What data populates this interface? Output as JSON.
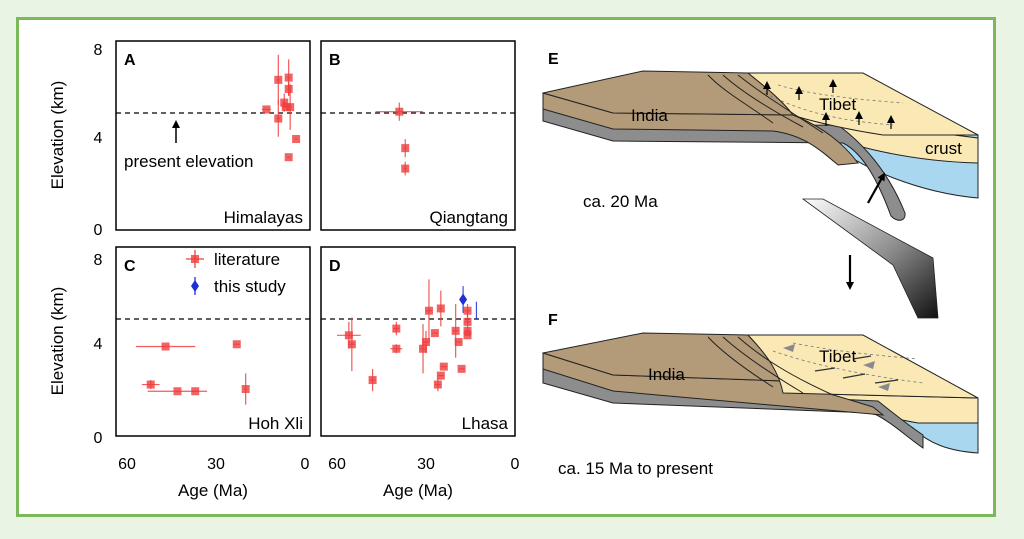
{
  "legend": {
    "literature": "literature",
    "this_study": "this study"
  },
  "annotation": {
    "present_elevation": "present elevation"
  },
  "axes": {
    "ylabel": "Elevation (km)",
    "xlabel": "Age (Ma)",
    "yticks": [
      "8",
      "4",
      "0"
    ],
    "xticks": [
      "60",
      "30",
      "0"
    ]
  },
  "chart_data": [
    {
      "type": "scatter",
      "panel": "A",
      "region": "Himalayas",
      "xlabel": "Age (Ma)",
      "ylabel": "Elevation (km)",
      "xlim": [
        60,
        0
      ],
      "ylim": [
        0,
        8
      ],
      "reference_line": 5.0,
      "series": [
        {
          "name": "literature",
          "points": [
            {
              "x": 13,
              "y": 5.3,
              "xerr": 1.5,
              "yerr": 0
            },
            {
              "x": 9,
              "y": 6.6,
              "xerr": 0.5,
              "yerr": 1.1
            },
            {
              "x": 9,
              "y": 4.9,
              "xerr": 0.5,
              "yerr": 0.8
            },
            {
              "x": 7,
              "y": 5.6,
              "xerr": 0.5,
              "yerr": 0.4
            },
            {
              "x": 6.5,
              "y": 5.4,
              "xerr": 1,
              "yerr": 0
            },
            {
              "x": 5.5,
              "y": 6.7,
              "xerr": 0.5,
              "yerr": 0.8
            },
            {
              "x": 5.5,
              "y": 6.2,
              "xerr": 0.5,
              "yerr": 0.3
            },
            {
              "x": 5,
              "y": 5.4,
              "xerr": 0.5,
              "yerr": 1.0
            },
            {
              "x": 5.5,
              "y": 3.2,
              "xerr": 0.5,
              "yerr": 0
            },
            {
              "x": 3,
              "y": 4.0,
              "xerr": 0.5,
              "yerr": 0
            }
          ]
        }
      ]
    },
    {
      "type": "scatter",
      "panel": "B",
      "region": "Qiangtang",
      "xlabel": "Age (Ma)",
      "ylabel": "Elevation (km)",
      "xlim": [
        60,
        0
      ],
      "ylim": [
        0,
        8
      ],
      "reference_line": 5.0,
      "series": [
        {
          "name": "literature",
          "points": [
            {
              "x": 39,
              "y": 5.2,
              "xerr": 8,
              "yerr": 0.4
            },
            {
              "x": 37,
              "y": 3.6,
              "xerr": 0.5,
              "yerr": 0.4
            },
            {
              "x": 37,
              "y": 2.7,
              "xerr": 0.5,
              "yerr": 0.3
            }
          ]
        }
      ]
    },
    {
      "type": "scatter",
      "panel": "C",
      "region": "Hoh Xli",
      "xlabel": "Age (Ma)",
      "ylabel": "Elevation (km)",
      "xlim": [
        60,
        0
      ],
      "ylim": [
        0,
        8
      ],
      "reference_line": 5.0,
      "series": [
        {
          "name": "literature",
          "points": [
            {
              "x": 47,
              "y": 4.0,
              "xerr": 10,
              "yerr": 0
            },
            {
              "x": 52,
              "y": 2.3,
              "xerr": 3,
              "yerr": 0.2
            },
            {
              "x": 43,
              "y": 2.0,
              "xerr": 10,
              "yerr": 0
            },
            {
              "x": 37,
              "y": 2.0,
              "xerr": 1,
              "yerr": 0
            },
            {
              "x": 23,
              "y": 4.1,
              "xerr": 1,
              "yerr": 0
            },
            {
              "x": 20,
              "y": 2.1,
              "xerr": 0.5,
              "yerr": 0.7
            }
          ]
        }
      ]
    },
    {
      "type": "scatter",
      "panel": "D",
      "region": "Lhasa",
      "xlabel": "Age (Ma)",
      "ylabel": "Elevation (km)",
      "xlim": [
        60,
        0
      ],
      "ylim": [
        0,
        8
      ],
      "reference_line": 5.0,
      "series": [
        {
          "name": "literature",
          "points": [
            {
              "x": 56,
              "y": 4.5,
              "xerr": 4,
              "yerr": 0.6
            },
            {
              "x": 55,
              "y": 4.1,
              "xerr": 1,
              "yerr": 1.2
            },
            {
              "x": 48,
              "y": 2.5,
              "xerr": 1,
              "yerr": 0.5
            },
            {
              "x": 40,
              "y": 4.8,
              "xerr": 1,
              "yerr": 0.3
            },
            {
              "x": 40,
              "y": 3.9,
              "xerr": 2,
              "yerr": 0.2
            },
            {
              "x": 31,
              "y": 3.9,
              "xerr": 1,
              "yerr": 1.1
            },
            {
              "x": 30,
              "y": 4.2,
              "xerr": 1,
              "yerr": 0.5
            },
            {
              "x": 29,
              "y": 5.6,
              "xerr": 1,
              "yerr": 1.4
            },
            {
              "x": 27,
              "y": 4.6,
              "xerr": 1,
              "yerr": 0
            },
            {
              "x": 26,
              "y": 2.3,
              "xerr": 1,
              "yerr": 0.3
            },
            {
              "x": 25,
              "y": 2.7,
              "xerr": 1,
              "yerr": 0
            },
            {
              "x": 25,
              "y": 5.7,
              "xerr": 0.5,
              "yerr": 0.8
            },
            {
              "x": 24,
              "y": 3.1,
              "xerr": 1,
              "yerr": 0
            },
            {
              "x": 20,
              "y": 4.7,
              "xerr": 1,
              "yerr": 1.2
            },
            {
              "x": 19,
              "y": 4.2,
              "xerr": 1,
              "yerr": 0
            },
            {
              "x": 18,
              "y": 3.0,
              "xerr": 1,
              "yerr": 0
            },
            {
              "x": 16,
              "y": 5.6,
              "xerr": 1,
              "yerr": 0.3
            },
            {
              "x": 16,
              "y": 5.1,
              "xerr": 1,
              "yerr": 0.4
            },
            {
              "x": 16,
              "y": 4.7,
              "xerr": 1,
              "yerr": 0
            },
            {
              "x": 16,
              "y": 4.5,
              "xerr": 1,
              "yerr": 0
            }
          ]
        },
        {
          "name": "this study",
          "points": [
            {
              "x": 17.5,
              "y": 6.1,
              "xerr": 0,
              "yerr": 0.6
            },
            {
              "x": 13,
              "y": 5.6,
              "xerr": 0,
              "yerr": 0.4
            }
          ]
        }
      ]
    }
  ],
  "diagram": {
    "panel_e": {
      "label": "E",
      "india": "India",
      "tibet": "Tibet",
      "crust": "crust",
      "age": "ca. 20 Ma"
    },
    "panel_f": {
      "label": "F",
      "india": "India",
      "tibet": "Tibet",
      "age": "ca. 15 Ma to present"
    }
  },
  "colors": {
    "literature": "#ee3d3d",
    "this_study": "#1f2fd6",
    "india_top": "#b39b79",
    "india_side": "#8d8d8d",
    "tibet": "#fae9b5",
    "mantle": "#a9d7ef",
    "frame": "#7bb85a",
    "background": "#eaf4e4"
  }
}
